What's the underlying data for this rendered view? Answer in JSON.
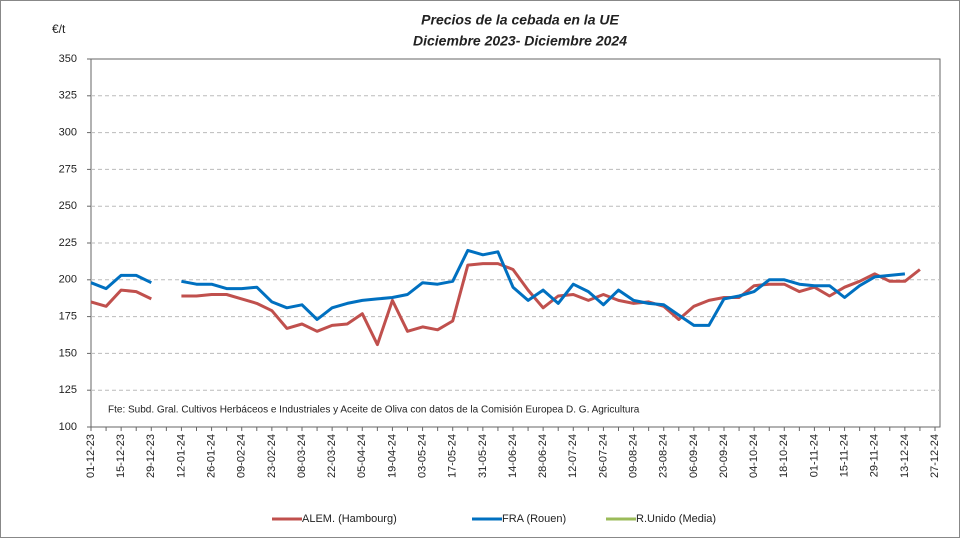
{
  "chart_data": {
    "type": "line",
    "title": "Precios de la cebada en la UE",
    "subtitle": "Diciembre 2023- Diciembre 2024",
    "y_axis_label": "€/t",
    "annotation": "Fte: Subd. Gral. Cultivos Herbáceos e Industriales y Aceite de Oliva con datos de la Comisión Europea D. G. Agricultura",
    "categories": [
      "01-12-23",
      null,
      "15-12-23",
      null,
      "29-12-23",
      null,
      "12-01-24",
      null,
      "26-01-24",
      null,
      "09-02-24",
      null,
      "23-02-24",
      null,
      "08-03-24",
      null,
      "22-03-24",
      null,
      "05-04-24",
      null,
      "19-04-24",
      null,
      "03-05-24",
      null,
      "17-05-24",
      null,
      "31-05-24",
      null,
      "14-06-24",
      null,
      "28-06-24",
      null,
      "12-07-24",
      null,
      "26-07-24",
      null,
      "09-08-24",
      null,
      "23-08-24",
      null,
      "06-09-24",
      null,
      "20-09-24",
      null,
      "04-10-24",
      null,
      "18-10-24",
      null,
      "01-11-24",
      null,
      "15-11-24",
      null,
      "29-11-24",
      null,
      "13-12-24",
      null,
      "27-12-24"
    ],
    "series": [
      {
        "name": "ALEM. (Hambourg)",
        "color": "#c0504d",
        "values": [
          185,
          182,
          193,
          192,
          187,
          null,
          189,
          189,
          190,
          190,
          187,
          184,
          179,
          167,
          170,
          165,
          169,
          170,
          177,
          156,
          186,
          165,
          168,
          166,
          172,
          210,
          211,
          211,
          207,
          193,
          181,
          189,
          190,
          186,
          190,
          186,
          184,
          185,
          182,
          173,
          182,
          186,
          188,
          188,
          196,
          197,
          197,
          192,
          195,
          189,
          195,
          199,
          204,
          199,
          199,
          207,
          null
        ]
      },
      {
        "name": "FRA (Rouen)",
        "color": "#0070c0",
        "values": [
          198,
          194,
          203,
          203,
          198,
          null,
          199,
          197,
          197,
          194,
          194,
          195,
          185,
          181,
          183,
          173,
          181,
          184,
          186,
          187,
          188,
          190,
          198,
          197,
          199,
          220,
          217,
          219,
          195,
          186,
          193,
          184,
          197,
          192,
          183,
          193,
          186,
          184,
          183,
          176,
          169,
          169,
          187,
          189,
          192,
          200,
          200,
          197,
          196,
          196,
          188,
          196,
          202,
          203,
          204,
          null,
          null
        ]
      },
      {
        "name": "R.Unido (Media)",
        "color": "#9bbb59",
        "values": [
          null,
          null,
          null,
          null,
          null,
          null,
          null,
          null,
          null,
          null,
          null,
          null,
          null,
          null,
          null,
          null,
          null,
          null,
          null,
          null,
          null,
          null,
          null,
          null,
          null,
          null,
          null,
          null,
          null,
          null,
          null,
          null,
          null,
          null,
          null,
          null,
          null,
          null,
          null,
          null,
          null,
          null,
          null,
          null,
          null,
          null,
          null,
          null,
          null,
          null,
          null,
          null,
          null,
          null,
          null,
          null,
          null
        ]
      }
    ],
    "ylim": [
      100,
      350
    ],
    "yticks": [
      100,
      125,
      150,
      175,
      200,
      225,
      250,
      275,
      300,
      325,
      350
    ],
    "grid": true
  }
}
